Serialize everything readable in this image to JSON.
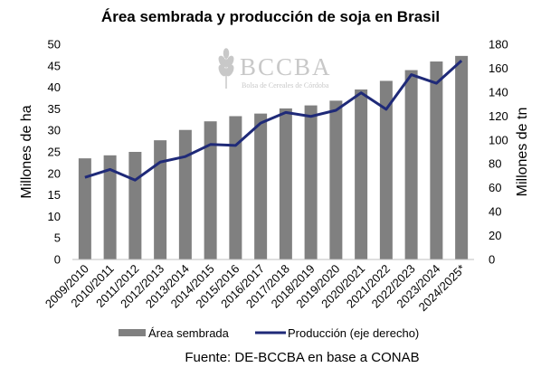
{
  "chart_data": {
    "type": "bar",
    "title": "Área sembrada y producción de soja en Brasil",
    "categories": [
      "2009/2010",
      "2010/2011",
      "2011/2012",
      "2012/2013",
      "2013/2014",
      "2014/2015",
      "2015/2016",
      "2016/2017",
      "2017/2018",
      "2018/2019",
      "2019/2020",
      "2020/2021",
      "2021/2022",
      "2022/2023",
      "2023/2024",
      "2024/2025*"
    ],
    "series": [
      {
        "name": "Área sembrada",
        "type": "bar",
        "axis": "left",
        "color": "#808080",
        "values": [
          23.5,
          24.2,
          25.0,
          27.7,
          30.1,
          32.1,
          33.3,
          33.9,
          35.1,
          35.8,
          36.9,
          39.5,
          41.5,
          44.0,
          46.0,
          47.3
        ]
      },
      {
        "name": "Producción (eje derecho)",
        "type": "line",
        "axis": "right",
        "color": "#1f2a78",
        "values": [
          68.7,
          75.3,
          66.4,
          81.5,
          86.1,
          96.2,
          95.4,
          114.1,
          123.0,
          119.7,
          124.8,
          139.4,
          125.6,
          154.6,
          147.4,
          166.3
        ]
      }
    ],
    "ylabel": "Millones de ha",
    "ylim": [
      0,
      50
    ],
    "yticks": [
      "0",
      "5",
      "10",
      "15",
      "20",
      "25",
      "30",
      "35",
      "40",
      "45",
      "50"
    ],
    "y2label": "Millones de tn",
    "y2lim": [
      0,
      180
    ],
    "y2ticks": [
      "0",
      "20",
      "40",
      "60",
      "80",
      "100",
      "120",
      "140",
      "160",
      "180"
    ],
    "grid": false,
    "legend": "bottom"
  },
  "watermark": {
    "logo": "BCCBA",
    "subtitle": "Bolsa de Cereales de Córdoba"
  },
  "source": "Fuente: DE-BCCBA en base a CONAB"
}
